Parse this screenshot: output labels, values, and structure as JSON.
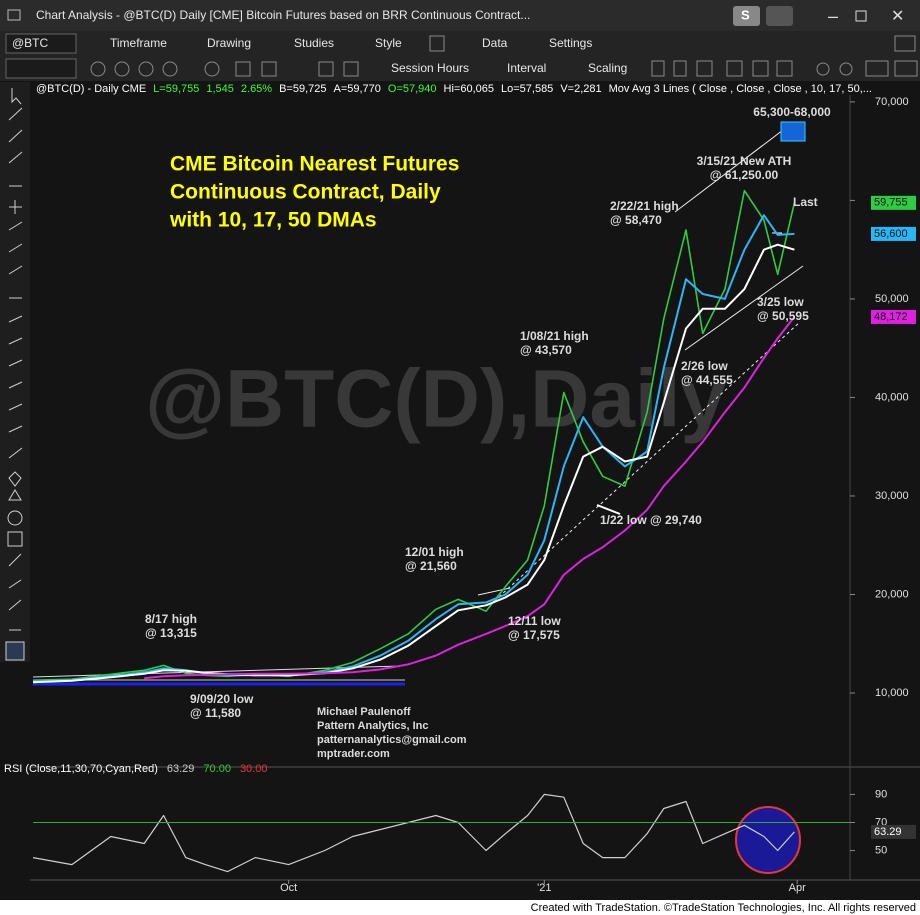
{
  "app": {
    "window_title": "Chart Analysis - @BTC(D) Daily [CME] Bitcoin Futures based on BRR Continuous Contract...",
    "button": "S",
    "symbol": "@BTC",
    "menu": [
      "Timeframe",
      "Drawing",
      "Studies",
      "Style",
      "Data",
      "Settings"
    ],
    "toolbar": [
      "Session Hours",
      "Interval",
      "Scaling"
    ],
    "footer": "Created with TradeStation. ©TradeStation Technologies, Inc. All rights reserved"
  },
  "chart_data": [
    {
      "type": "line",
      "title": [
        "CME Bitcoin Nearest Futures",
        "Continuous Contract, Daily",
        "with 10, 17, 50 DMAs"
      ],
      "watermark": "@BTC(D),Daily",
      "header": [
        {
          "text": "@BTC(D) - Daily  CME",
          "color": "#ffffff"
        },
        {
          "text": "L=59,755",
          "color": "#33ff33"
        },
        {
          "text": "1,545",
          "color": "#33ff33"
        },
        {
          "text": "2.65%",
          "color": "#33ff33"
        },
        {
          "text": "B=59,725",
          "color": "#ffffff"
        },
        {
          "text": "A=59,770",
          "color": "#ffffff"
        },
        {
          "text": "O=57,940",
          "color": "#33ff33"
        },
        {
          "text": "Hi=60,065",
          "color": "#ffffff"
        },
        {
          "text": "Lo=57,585",
          "color": "#ffffff"
        },
        {
          "text": "V=2,281",
          "color": "#ffffff"
        },
        {
          "text": "Mov Avg 3 Lines ( Close , Close , Close , 10, 17, 50,...",
          "color": "#ffffff"
        }
      ],
      "x": [
        0,
        14,
        28,
        40,
        47,
        55,
        62,
        70,
        80,
        92,
        105,
        115,
        125,
        135,
        145,
        153,
        163,
        170,
        178,
        184,
        191,
        198,
        205,
        213,
        221,
        227,
        235,
        241,
        249,
        256,
        263,
        268,
        274
      ],
      "xlim": [
        0,
        294
      ],
      "ylim": [
        3200,
        70700
      ],
      "yticks": [
        {
          "value": 10000,
          "label": "10,000"
        },
        {
          "value": 20000,
          "label": "20,000"
        },
        {
          "value": 30000,
          "label": "30,000"
        },
        {
          "value": 40000,
          "label": "40,000"
        },
        {
          "value": 50000,
          "label": "50,000"
        },
        {
          "value": 60000,
          "label": "60,000"
        },
        {
          "value": 70000,
          "label": "70,000"
        }
      ],
      "series": [
        {
          "color": "#2ecc40",
          "width": 1.6,
          "values": [
            11300,
            11400,
            11900,
            12300,
            12800,
            12000,
            11800,
            11700,
            11900,
            11700,
            12300,
            13100,
            14500,
            16000,
            18500,
            19500,
            18300,
            20800,
            23500,
            29000,
            40500,
            35500,
            32000,
            31000,
            38500,
            48000,
            57000,
            46500,
            51000,
            61000,
            58000,
            52500,
            59755
          ],
          "value_labels": [
            null,
            null,
            null,
            null,
            null,
            null,
            null,
            null,
            null,
            null,
            null,
            null,
            null,
            null,
            null,
            null,
            null,
            null,
            null,
            null,
            null,
            null,
            null,
            null,
            null,
            null,
            null,
            null,
            null,
            null,
            null,
            null,
            "59,755"
          ]
        },
        {
          "color": "#29b6f6",
          "width": 2,
          "values": [
            11200,
            11300,
            11700,
            12100,
            12500,
            12300,
            12000,
            11800,
            11800,
            11800,
            12100,
            12700,
            13800,
            15300,
            17500,
            19000,
            19200,
            20000,
            22000,
            25500,
            33000,
            38000,
            35000,
            33000,
            34500,
            43000,
            52000,
            50500,
            50000,
            55000,
            58500,
            56500,
            56600
          ],
          "value_labels": [
            null,
            null,
            null,
            null,
            null,
            null,
            null,
            null,
            null,
            null,
            null,
            null,
            null,
            null,
            null,
            null,
            null,
            null,
            null,
            null,
            null,
            null,
            null,
            null,
            null,
            null,
            null,
            null,
            null,
            null,
            null,
            null,
            "56,600"
          ]
        },
        {
          "color": "#ffffff",
          "width": 2,
          "values": [
            11100,
            11250,
            11600,
            11950,
            12300,
            12250,
            12050,
            11900,
            11800,
            11800,
            12000,
            12500,
            13400,
            14800,
            16800,
            18400,
            18900,
            19700,
            21000,
            23500,
            29000,
            34000,
            35000,
            33500,
            34000,
            39500,
            47000,
            49000,
            49000,
            51000,
            55000,
            55500,
            55000
          ]
        },
        {
          "color": "#e020e0",
          "width": 2,
          "values": [
            null,
            null,
            null,
            11500,
            11700,
            11800,
            11850,
            11900,
            11950,
            11950,
            12000,
            12100,
            12400,
            12900,
            13800,
            14900,
            16000,
            16800,
            17800,
            19000,
            22000,
            23600,
            24800,
            26500,
            28600,
            31000,
            33500,
            35500,
            38500,
            41000,
            44000,
            46000,
            48172
          ],
          "value_labels": [
            null,
            null,
            null,
            null,
            null,
            null,
            null,
            null,
            null,
            null,
            null,
            null,
            null,
            null,
            null,
            null,
            null,
            null,
            null,
            null,
            null,
            null,
            null,
            null,
            null,
            null,
            null,
            null,
            null,
            null,
            null,
            null,
            "48,172"
          ]
        }
      ],
      "annotations": [
        {
          "lines": [
            "65,300-68,000"
          ],
          "color": "#33ccff"
        },
        {
          "lines": [
            "3/15/21 New ATH",
            "@ 61,250.00"
          ],
          "color": "#33ccff"
        },
        {
          "lines": [
            "2/22/21 high",
            "@ 58,470"
          ],
          "color": "#ffffff"
        },
        {
          "lines": [
            "Last"
          ],
          "color": "#33ff33"
        },
        {
          "lines": [
            "3/25 low",
            "@ 50,595"
          ],
          "color": "#ffffff"
        },
        {
          "lines": [
            "1/08/21 high",
            "@ 43,570"
          ],
          "color": "#ffffff"
        },
        {
          "lines": [
            "2/26 low",
            "@ 44,555"
          ],
          "color": "#ffffff"
        },
        {
          "lines": [
            "12/01 high",
            "@ 21,560"
          ],
          "color": "#33ccff"
        },
        {
          "lines": [
            "1/22 low @ 29,740"
          ],
          "color": "#ffffff"
        },
        {
          "lines": [
            "12/11 low",
            "@ 17,575"
          ],
          "color": "#33ccff"
        },
        {
          "lines": [
            "8/17 high",
            "@ 13,315"
          ],
          "color": "#33ccff"
        },
        {
          "lines": [
            "9/09/20 low",
            "@ 11,580"
          ],
          "color": "#33ccff"
        },
        {
          "lines": [
            "Michael Paulenoff",
            "Pattern Analytics, Inc",
            "patternanalytics@gmail.com",
            "mptrader.com"
          ],
          "color": "#a8a8a8"
        }
      ]
    },
    {
      "type": "line",
      "title": "RSI (Close,11,30,70,Cyan,Red)",
      "readouts": [
        {
          "value": 63.29,
          "label": "63.29",
          "color": "#cccccc"
        },
        {
          "value": 70,
          "label": "70.00",
          "color": "#33cc33"
        },
        {
          "value": 30,
          "label": "30.00",
          "color": "#ee3333"
        }
      ],
      "x": [
        0,
        14,
        28,
        40,
        47,
        55,
        62,
        70,
        80,
        92,
        105,
        115,
        125,
        135,
        145,
        153,
        163,
        170,
        178,
        184,
        191,
        198,
        205,
        213,
        221,
        227,
        235,
        241,
        249,
        256,
        263,
        268,
        274
      ],
      "xlim": [
        0,
        294
      ],
      "xticks": [
        {
          "value": 92,
          "label": "Oct"
        },
        {
          "value": 184,
          "label": "'21"
        },
        {
          "value": 275,
          "label": "Apr"
        }
      ],
      "ylim": [
        29,
        106
      ],
      "yticks": [
        90,
        70,
        50
      ],
      "series": [
        {
          "color": "#d0d0d0",
          "width": 1.2,
          "values": [
            45,
            40,
            60,
            55,
            75,
            45,
            40,
            35,
            45,
            40,
            50,
            60,
            65,
            70,
            75,
            70,
            50,
            62,
            75,
            90,
            88,
            55,
            45,
            45,
            62,
            80,
            85,
            55,
            62,
            68,
            60,
            50,
            63.29
          ]
        }
      ]
    }
  ]
}
